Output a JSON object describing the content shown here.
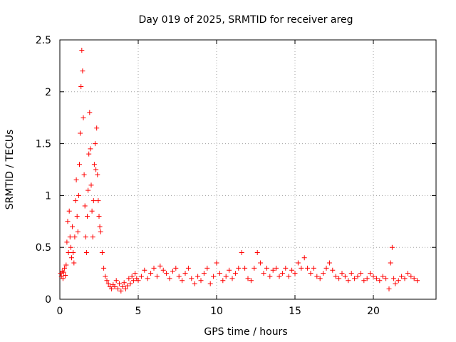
{
  "chart_data": {
    "type": "scatter",
    "title": "Day 019 of 2025, SRMTID for receiver areg",
    "xlabel": "GPS time / hours",
    "ylabel": "SRMTID / TECUs",
    "xlim": [
      0,
      24
    ],
    "ylim": [
      0,
      2.5
    ],
    "xticks": [
      "0",
      "5",
      "10",
      "15",
      "20"
    ],
    "yticks": [
      "0",
      "0.5",
      "1",
      "1.5",
      "2",
      "2.5"
    ],
    "grid": true,
    "marker": "+",
    "color": "#ff0000",
    "series": [
      {
        "name": "SRMTID",
        "points": [
          [
            0.05,
            0.25
          ],
          [
            0.1,
            0.22
          ],
          [
            0.15,
            0.27
          ],
          [
            0.2,
            0.2
          ],
          [
            0.25,
            0.26
          ],
          [
            0.3,
            0.3
          ],
          [
            0.35,
            0.23
          ],
          [
            0.4,
            0.33
          ],
          [
            0.45,
            0.55
          ],
          [
            0.5,
            0.75
          ],
          [
            0.55,
            0.45
          ],
          [
            0.6,
            0.85
          ],
          [
            0.65,
            0.6
          ],
          [
            0.7,
            0.5
          ],
          [
            0.75,
            0.4
          ],
          [
            0.8,
            0.7
          ],
          [
            0.85,
            0.45
          ],
          [
            0.9,
            0.35
          ],
          [
            0.95,
            0.6
          ],
          [
            1.0,
            0.95
          ],
          [
            1.05,
            1.15
          ],
          [
            1.1,
            0.8
          ],
          [
            1.15,
            0.65
          ],
          [
            1.2,
            1.0
          ],
          [
            1.25,
            1.3
          ],
          [
            1.3,
            1.6
          ],
          [
            1.35,
            2.05
          ],
          [
            1.4,
            2.4
          ],
          [
            1.45,
            2.2
          ],
          [
            1.5,
            1.75
          ],
          [
            1.55,
            1.2
          ],
          [
            1.6,
            0.9
          ],
          [
            1.65,
            0.6
          ],
          [
            1.7,
            0.45
          ],
          [
            1.75,
            0.8
          ],
          [
            1.8,
            1.05
          ],
          [
            1.85,
            1.4
          ],
          [
            1.9,
            1.8
          ],
          [
            1.95,
            1.45
          ],
          [
            2.0,
            1.1
          ],
          [
            2.05,
            0.85
          ],
          [
            2.1,
            0.6
          ],
          [
            2.15,
            0.95
          ],
          [
            2.2,
            1.3
          ],
          [
            2.25,
            1.5
          ],
          [
            2.3,
            1.25
          ],
          [
            2.35,
            1.65
          ],
          [
            2.4,
            1.2
          ],
          [
            2.45,
            0.95
          ],
          [
            2.5,
            0.8
          ],
          [
            2.55,
            0.7
          ],
          [
            2.6,
            0.65
          ],
          [
            2.7,
            0.45
          ],
          [
            2.8,
            0.3
          ],
          [
            2.9,
            0.22
          ],
          [
            3.0,
            0.18
          ],
          [
            3.1,
            0.15
          ],
          [
            3.2,
            0.12
          ],
          [
            3.3,
            0.1
          ],
          [
            3.4,
            0.14
          ],
          [
            3.5,
            0.12
          ],
          [
            3.6,
            0.18
          ],
          [
            3.7,
            0.1
          ],
          [
            3.8,
            0.15
          ],
          [
            3.9,
            0.08
          ],
          [
            4.0,
            0.12
          ],
          [
            4.1,
            0.16
          ],
          [
            4.2,
            0.1
          ],
          [
            4.3,
            0.13
          ],
          [
            4.4,
            0.2
          ],
          [
            4.5,
            0.15
          ],
          [
            4.6,
            0.22
          ],
          [
            4.7,
            0.18
          ],
          [
            4.8,
            0.25
          ],
          [
            4.9,
            0.2
          ],
          [
            5.0,
            0.18
          ],
          [
            5.2,
            0.22
          ],
          [
            5.4,
            0.28
          ],
          [
            5.6,
            0.2
          ],
          [
            5.8,
            0.25
          ],
          [
            6.0,
            0.3
          ],
          [
            6.2,
            0.22
          ],
          [
            6.4,
            0.32
          ],
          [
            6.6,
            0.28
          ],
          [
            6.8,
            0.25
          ],
          [
            7.0,
            0.2
          ],
          [
            7.2,
            0.27
          ],
          [
            7.4,
            0.3
          ],
          [
            7.6,
            0.22
          ],
          [
            7.8,
            0.18
          ],
          [
            8.0,
            0.25
          ],
          [
            8.2,
            0.3
          ],
          [
            8.4,
            0.2
          ],
          [
            8.6,
            0.15
          ],
          [
            8.8,
            0.22
          ],
          [
            9.0,
            0.18
          ],
          [
            9.2,
            0.25
          ],
          [
            9.4,
            0.3
          ],
          [
            9.6,
            0.15
          ],
          [
            9.8,
            0.22
          ],
          [
            10.0,
            0.35
          ],
          [
            10.2,
            0.25
          ],
          [
            10.4,
            0.18
          ],
          [
            10.6,
            0.22
          ],
          [
            10.8,
            0.28
          ],
          [
            11.0,
            0.2
          ],
          [
            11.2,
            0.25
          ],
          [
            11.4,
            0.3
          ],
          [
            11.6,
            0.45
          ],
          [
            11.8,
            0.3
          ],
          [
            12.0,
            0.2
          ],
          [
            12.2,
            0.18
          ],
          [
            12.4,
            0.3
          ],
          [
            12.6,
            0.45
          ],
          [
            12.8,
            0.35
          ],
          [
            13.0,
            0.25
          ],
          [
            13.2,
            0.3
          ],
          [
            13.4,
            0.22
          ],
          [
            13.6,
            0.28
          ],
          [
            13.8,
            0.3
          ],
          [
            14.0,
            0.22
          ],
          [
            14.2,
            0.25
          ],
          [
            14.4,
            0.3
          ],
          [
            14.6,
            0.22
          ],
          [
            14.8,
            0.28
          ],
          [
            15.0,
            0.25
          ],
          [
            15.2,
            0.35
          ],
          [
            15.4,
            0.3
          ],
          [
            15.6,
            0.4
          ],
          [
            15.8,
            0.3
          ],
          [
            16.0,
            0.25
          ],
          [
            16.2,
            0.3
          ],
          [
            16.4,
            0.22
          ],
          [
            16.6,
            0.2
          ],
          [
            16.8,
            0.25
          ],
          [
            17.0,
            0.3
          ],
          [
            17.2,
            0.35
          ],
          [
            17.4,
            0.28
          ],
          [
            17.6,
            0.22
          ],
          [
            17.8,
            0.2
          ],
          [
            18.0,
            0.25
          ],
          [
            18.2,
            0.22
          ],
          [
            18.4,
            0.18
          ],
          [
            18.6,
            0.25
          ],
          [
            18.8,
            0.2
          ],
          [
            19.0,
            0.22
          ],
          [
            19.2,
            0.25
          ],
          [
            19.4,
            0.18
          ],
          [
            19.6,
            0.2
          ],
          [
            19.8,
            0.25
          ],
          [
            20.0,
            0.22
          ],
          [
            20.2,
            0.2
          ],
          [
            20.4,
            0.18
          ],
          [
            20.6,
            0.22
          ],
          [
            20.8,
            0.2
          ],
          [
            21.0,
            0.1
          ],
          [
            21.1,
            0.35
          ],
          [
            21.2,
            0.5
          ],
          [
            21.3,
            0.2
          ],
          [
            21.4,
            0.15
          ],
          [
            21.6,
            0.18
          ],
          [
            21.8,
            0.22
          ],
          [
            22.0,
            0.2
          ],
          [
            22.2,
            0.25
          ],
          [
            22.4,
            0.22
          ],
          [
            22.6,
            0.2
          ],
          [
            22.8,
            0.18
          ]
        ]
      }
    ]
  }
}
